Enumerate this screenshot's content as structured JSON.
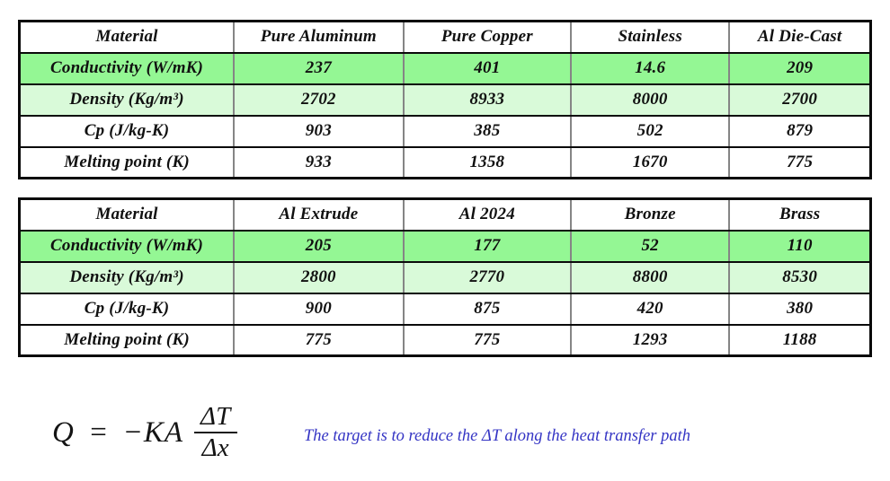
{
  "colors": {
    "strong_green": "#94F794",
    "pale_green": "#D9FAD9",
    "note_blue": "#3434C4",
    "border_dark": "#0a0a0a",
    "border_gray": "#858585"
  },
  "tables": [
    {
      "headers": [
        "Material",
        "Pure Aluminum",
        "Pure Copper",
        "Stainless",
        "Al Die-Cast"
      ],
      "rows": [
        {
          "label": "Conductivity (W/mK)",
          "values": [
            "237",
            "401",
            "14.6",
            "209"
          ]
        },
        {
          "label": "Density (Kg/m³)",
          "values": [
            "2702",
            "8933",
            "8000",
            "2700"
          ]
        },
        {
          "label": "Cp (J/kg-K)",
          "values": [
            "903",
            "385",
            "502",
            "879"
          ]
        },
        {
          "label": "Melting point (K)",
          "values": [
            "933",
            "1358",
            "1670",
            "775"
          ]
        }
      ]
    },
    {
      "headers": [
        "Material",
        "Al Extrude",
        "Al 2024",
        "Bronze",
        "Brass"
      ],
      "rows": [
        {
          "label": "Conductivity (W/mK)",
          "values": [
            "205",
            "177",
            "52",
            "110"
          ]
        },
        {
          "label": "Density (Kg/m³)",
          "values": [
            "2800",
            "2770",
            "8800",
            "8530"
          ]
        },
        {
          "label": "Cp (J/kg-K)",
          "values": [
            "900",
            "875",
            "420",
            "380"
          ]
        },
        {
          "label": "Melting point (K)",
          "values": [
            "775",
            "775",
            "1293",
            "1188"
          ]
        }
      ]
    }
  ],
  "equation": {
    "lhs": "Q = −KA",
    "numerator": "ΔT",
    "denominator": "Δx"
  },
  "note": {
    "text": "The target is to reduce the ΔT along the heat transfer path"
  }
}
